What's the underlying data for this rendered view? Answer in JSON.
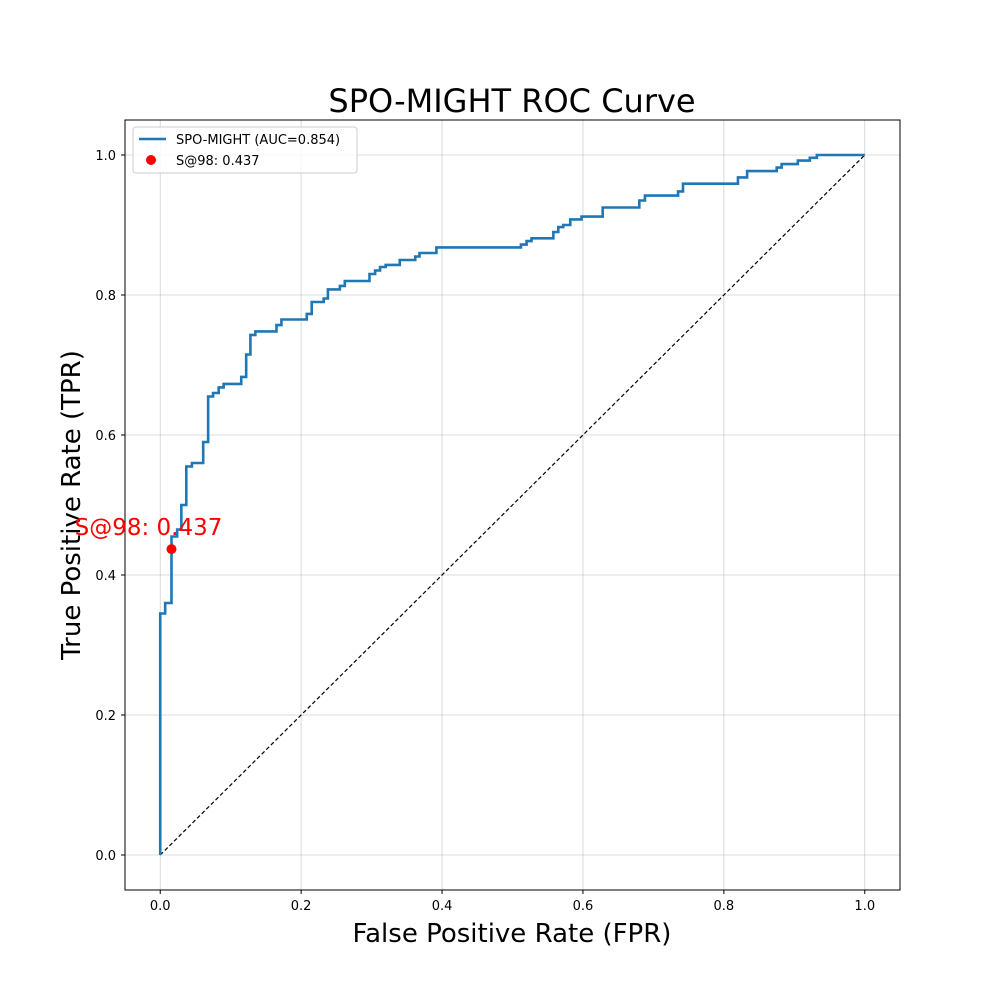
{
  "chart_data": {
    "type": "line",
    "title": "SPO-MIGHT ROC Curve",
    "xlabel": "False Positive Rate (FPR)",
    "ylabel": "True Positive Rate (TPR)",
    "xlim": [
      -0.05,
      1.05
    ],
    "ylim": [
      -0.05,
      1.05
    ],
    "xticks": [
      "0.0",
      "0.2",
      "0.4",
      "0.6",
      "0.8",
      "1.0"
    ],
    "yticks": [
      "0.0",
      "0.2",
      "0.4",
      "0.6",
      "0.8",
      "1.0"
    ],
    "grid": true,
    "legend_position": "top-left",
    "colors": {
      "curve": "#1f77b4",
      "point": "#ff0000",
      "diagonal": "#000000"
    },
    "series": [
      {
        "name": "SPO-MIGHT (AUC=0.854)",
        "points": [
          [
            0.0,
            0.0
          ],
          [
            0.0,
            0.345
          ],
          [
            0.007,
            0.345
          ],
          [
            0.007,
            0.36
          ],
          [
            0.016,
            0.36
          ],
          [
            0.016,
            0.437
          ],
          [
            0.016,
            0.455
          ],
          [
            0.024,
            0.455
          ],
          [
            0.024,
            0.465
          ],
          [
            0.03,
            0.465
          ],
          [
            0.03,
            0.5
          ],
          [
            0.037,
            0.5
          ],
          [
            0.037,
            0.555
          ],
          [
            0.045,
            0.555
          ],
          [
            0.045,
            0.56
          ],
          [
            0.061,
            0.56
          ],
          [
            0.061,
            0.59
          ],
          [
            0.068,
            0.59
          ],
          [
            0.068,
            0.655
          ],
          [
            0.075,
            0.655
          ],
          [
            0.075,
            0.66
          ],
          [
            0.083,
            0.66
          ],
          [
            0.083,
            0.668
          ],
          [
            0.09,
            0.668
          ],
          [
            0.09,
            0.673
          ],
          [
            0.115,
            0.673
          ],
          [
            0.115,
            0.683
          ],
          [
            0.122,
            0.683
          ],
          [
            0.122,
            0.715
          ],
          [
            0.128,
            0.715
          ],
          [
            0.128,
            0.743
          ],
          [
            0.135,
            0.743
          ],
          [
            0.135,
            0.748
          ],
          [
            0.165,
            0.748
          ],
          [
            0.165,
            0.757
          ],
          [
            0.172,
            0.757
          ],
          [
            0.172,
            0.765
          ],
          [
            0.208,
            0.765
          ],
          [
            0.208,
            0.773
          ],
          [
            0.215,
            0.773
          ],
          [
            0.215,
            0.79
          ],
          [
            0.232,
            0.79
          ],
          [
            0.232,
            0.795
          ],
          [
            0.238,
            0.795
          ],
          [
            0.238,
            0.808
          ],
          [
            0.255,
            0.808
          ],
          [
            0.255,
            0.813
          ],
          [
            0.262,
            0.813
          ],
          [
            0.262,
            0.82
          ],
          [
            0.297,
            0.82
          ],
          [
            0.297,
            0.83
          ],
          [
            0.305,
            0.83
          ],
          [
            0.305,
            0.835
          ],
          [
            0.312,
            0.835
          ],
          [
            0.312,
            0.84
          ],
          [
            0.32,
            0.84
          ],
          [
            0.32,
            0.843
          ],
          [
            0.34,
            0.843
          ],
          [
            0.34,
            0.85
          ],
          [
            0.362,
            0.85
          ],
          [
            0.362,
            0.855
          ],
          [
            0.368,
            0.855
          ],
          [
            0.368,
            0.86
          ],
          [
            0.392,
            0.86
          ],
          [
            0.392,
            0.868
          ],
          [
            0.512,
            0.868
          ],
          [
            0.512,
            0.872
          ],
          [
            0.52,
            0.872
          ],
          [
            0.52,
            0.877
          ],
          [
            0.527,
            0.877
          ],
          [
            0.527,
            0.881
          ],
          [
            0.558,
            0.881
          ],
          [
            0.558,
            0.89
          ],
          [
            0.565,
            0.89
          ],
          [
            0.565,
            0.897
          ],
          [
            0.572,
            0.897
          ],
          [
            0.572,
            0.9
          ],
          [
            0.582,
            0.9
          ],
          [
            0.582,
            0.908
          ],
          [
            0.598,
            0.908
          ],
          [
            0.598,
            0.912
          ],
          [
            0.628,
            0.912
          ],
          [
            0.628,
            0.925
          ],
          [
            0.68,
            0.925
          ],
          [
            0.68,
            0.935
          ],
          [
            0.688,
            0.935
          ],
          [
            0.688,
            0.942
          ],
          [
            0.735,
            0.942
          ],
          [
            0.735,
            0.948
          ],
          [
            0.742,
            0.948
          ],
          [
            0.742,
            0.959
          ],
          [
            0.82,
            0.959
          ],
          [
            0.82,
            0.968
          ],
          [
            0.833,
            0.968
          ],
          [
            0.833,
            0.977
          ],
          [
            0.875,
            0.977
          ],
          [
            0.875,
            0.982
          ],
          [
            0.882,
            0.982
          ],
          [
            0.882,
            0.987
          ],
          [
            0.905,
            0.987
          ],
          [
            0.905,
            0.992
          ],
          [
            0.922,
            0.992
          ],
          [
            0.922,
            0.996
          ],
          [
            0.932,
            0.996
          ],
          [
            0.932,
            1.0
          ],
          [
            1.0,
            1.0
          ]
        ]
      }
    ],
    "point": {
      "label": "S@98: 0.437",
      "x": 0.016,
      "y": 0.437
    },
    "annotation": {
      "text": "S@98: 0.437",
      "x": 0.016,
      "y": 0.437
    },
    "diagonal": [
      [
        0,
        0
      ],
      [
        1,
        1
      ]
    ]
  }
}
